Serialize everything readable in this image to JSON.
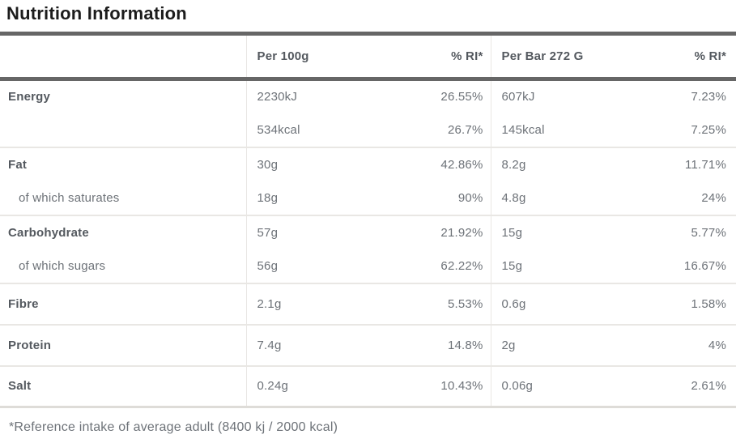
{
  "colors": {
    "background": "#ffffff",
    "heading_text": "#1c1c1c",
    "label_text": "#54595f",
    "value_text": "#6d7278",
    "dark_border": "#666666",
    "light_divider": "#e9e7e4",
    "table_bottom_border": "#dedcd8"
  },
  "chart_data": {
    "type": "table",
    "title": "Nutrition Information",
    "columns": [
      "",
      "Per 100g",
      "% RI*",
      "Per Bar 272 G",
      "% RI*"
    ],
    "rows": [
      [
        "Energy",
        "2230kJ",
        "26.55%",
        "607kJ",
        "7.23%"
      ],
      [
        "",
        "534kcal",
        "26.7%",
        "145kcal",
        "7.25%"
      ],
      [
        "Fat",
        "30g",
        "42.86%",
        "8.2g",
        "11.71%"
      ],
      [
        "of which saturates",
        "18g",
        "90%",
        "4.8g",
        "24%"
      ],
      [
        "Carbohydrate",
        "57g",
        "21.92%",
        "15g",
        "5.77%"
      ],
      [
        "of which sugars",
        "56g",
        "62.22%",
        "15g",
        "16.67%"
      ],
      [
        "Fibre",
        "2.1g",
        "5.53%",
        "0.6g",
        "1.58%"
      ],
      [
        "Protein",
        "7.4g",
        "14.8%",
        "2g",
        "4%"
      ],
      [
        "Salt",
        "0.24g",
        "10.43%",
        "0.06g",
        "2.61%"
      ]
    ],
    "footnote": "*Reference intake of average adult (8400 kj / 2000 kcal)"
  }
}
